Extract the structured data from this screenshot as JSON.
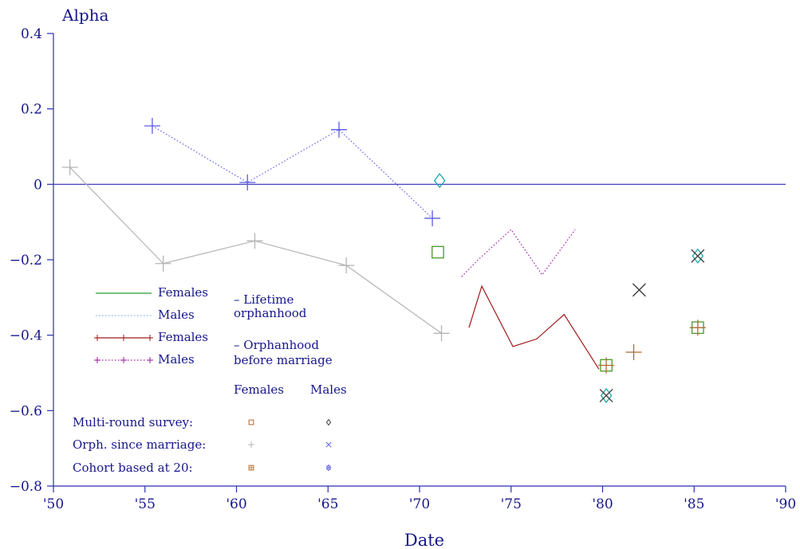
{
  "colors": {
    "axis": "#2d2db4",
    "text": "#16168c",
    "female_lifetime": "#2a9a2a",
    "male_lifetime": "#7fb4e6",
    "female_orph_marriage": "#a01a1a",
    "male_orph_marriage": "#a01ea0",
    "female_since_marriage": "#b4b4b4",
    "male_since_marriage": "#5a5ae6",
    "multi_round": "#b06a30",
    "cohort_female": "#4a9a2a",
    "cohort_male": "#1aa8a8",
    "dark_x": "#3c3c3c"
  },
  "chart_data": {
    "type": "scatter",
    "ylabel": "Alpha",
    "xlabel": "Date",
    "xlim": [
      1950,
      1990
    ],
    "ylim": [
      -0.8,
      0.4
    ],
    "xticks": [
      {
        "v": 1950,
        "label": "'50"
      },
      {
        "v": 1955,
        "label": "'55"
      },
      {
        "v": 1960,
        "label": "'60"
      },
      {
        "v": 1965,
        "label": "'65"
      },
      {
        "v": 1970,
        "label": "'70"
      },
      {
        "v": 1975,
        "label": "'75"
      },
      {
        "v": 1980,
        "label": "'80"
      },
      {
        "v": 1985,
        "label": "'85"
      },
      {
        "v": 1990,
        "label": "'90"
      }
    ],
    "yticks": [
      {
        "v": 0.4,
        "label": "0.4"
      },
      {
        "v": 0.2,
        "label": "0.2"
      },
      {
        "v": 0,
        "label": "0"
      },
      {
        "v": -0.2,
        "label": "−0.2"
      },
      {
        "v": -0.4,
        "label": "−0.4"
      },
      {
        "v": -0.6,
        "label": "−0.6"
      },
      {
        "v": -0.8,
        "label": "−0.8"
      }
    ],
    "reference_line": 0,
    "series": [
      {
        "name": "Females",
        "group": "lifetime",
        "style": "solid",
        "color_key": "female_lifetime",
        "marker": "none",
        "points": []
      },
      {
        "name": "Males",
        "group": "lifetime",
        "style": "dotted",
        "color_key": "male_lifetime",
        "marker": "none",
        "points": []
      },
      {
        "name": "Females",
        "group": "orphanhood before marriage",
        "style": "solid",
        "color_key": "female_orph_marriage",
        "marker": "none",
        "points": [
          [
            1972.7,
            -0.38
          ],
          [
            1973.4,
            -0.27
          ],
          [
            1975.1,
            -0.43
          ],
          [
            1976.4,
            -0.41
          ],
          [
            1977.9,
            -0.345
          ],
          [
            1979.8,
            -0.49
          ]
        ]
      },
      {
        "name": "Males",
        "group": "orphanhood before marriage",
        "style": "dotted",
        "color_key": "male_orph_marriage",
        "marker": "none",
        "points": [
          [
            1972.3,
            -0.245
          ],
          [
            1973.2,
            -0.2
          ],
          [
            1975.0,
            -0.12
          ],
          [
            1976.7,
            -0.24
          ],
          [
            1978.5,
            -0.12
          ]
        ]
      },
      {
        "name": "Orph. since marriage (Females)",
        "style": "solid",
        "color_key": "female_since_marriage",
        "marker": "plus",
        "points": [
          [
            1950.9,
            0.045
          ],
          [
            1956.0,
            -0.21
          ],
          [
            1961.0,
            -0.15
          ],
          [
            1966.0,
            -0.215
          ],
          [
            1971.2,
            -0.395
          ]
        ]
      },
      {
        "name": "Orph. since marriage (Males)",
        "style": "dotted",
        "color_key": "male_since_marriage",
        "marker": "plus",
        "points": [
          [
            1955.4,
            0.155
          ],
          [
            1960.6,
            0.005
          ],
          [
            1965.6,
            0.145
          ],
          [
            1970.7,
            -0.09
          ]
        ]
      }
    ],
    "extra_points": [
      {
        "x": 1971.1,
        "y": 0.01,
        "marker": "diamond",
        "color_key": "cohort_male"
      },
      {
        "x": 1971.0,
        "y": -0.18,
        "marker": "square",
        "color_key": "cohort_female"
      },
      {
        "x": 1980.2,
        "y": -0.48,
        "marker": "square",
        "color_key": "cohort_female"
      },
      {
        "x": 1980.2,
        "y": -0.48,
        "marker": "plus",
        "color_key": "multi_round"
      },
      {
        "x": 1980.2,
        "y": -0.56,
        "marker": "diamond",
        "color_key": "cohort_male"
      },
      {
        "x": 1980.2,
        "y": -0.56,
        "marker": "x",
        "color_key": "dark_x"
      },
      {
        "x": 1981.7,
        "y": -0.445,
        "marker": "plus",
        "color_key": "multi_round"
      },
      {
        "x": 1982.0,
        "y": -0.28,
        "marker": "x",
        "color_key": "dark_x"
      },
      {
        "x": 1985.2,
        "y": -0.38,
        "marker": "square",
        "color_key": "cohort_female"
      },
      {
        "x": 1985.2,
        "y": -0.38,
        "marker": "plus",
        "color_key": "multi_round"
      },
      {
        "x": 1985.2,
        "y": -0.19,
        "marker": "diamond",
        "color_key": "cohort_male"
      },
      {
        "x": 1985.2,
        "y": -0.19,
        "marker": "x",
        "color_key": "dark_x"
      }
    ]
  },
  "legend": {
    "lines": [
      {
        "label": "Females",
        "style": "solid",
        "color_key": "female_lifetime",
        "marker": false
      },
      {
        "label": "Males",
        "style": "dotted",
        "color_key": "male_lifetime",
        "marker": false
      },
      {
        "label": "Females",
        "style": "solid",
        "color_key": "female_orph_marriage",
        "marker": true
      },
      {
        "label": "Males",
        "style": "dotted",
        "color_key": "male_orph_marriage",
        "marker": true
      }
    ],
    "group_lifetime_line1": "– Lifetime",
    "group_lifetime_line2": "orphanhood",
    "group_marriage_line1": "– Orphanhood",
    "group_marriage_line2": "before marriage",
    "col_females": "Females",
    "col_males": "Males",
    "rows": [
      {
        "label": "Multi-round survey:",
        "female_marker": "square-small",
        "female_color": "multi_round",
        "male_marker": "diamond-small",
        "male_color": "dark_x"
      },
      {
        "label": "Orph. since marriage:",
        "female_marker": "plus-small",
        "female_color": "female_since_marriage",
        "male_marker": "x-small",
        "male_color": "male_since_marriage"
      },
      {
        "label": "Cohort based at 20:",
        "female_marker": "square-plus-small",
        "female_color": "multi_round",
        "male_marker": "diamond-x-small",
        "male_color": "male_since_marriage"
      }
    ]
  }
}
